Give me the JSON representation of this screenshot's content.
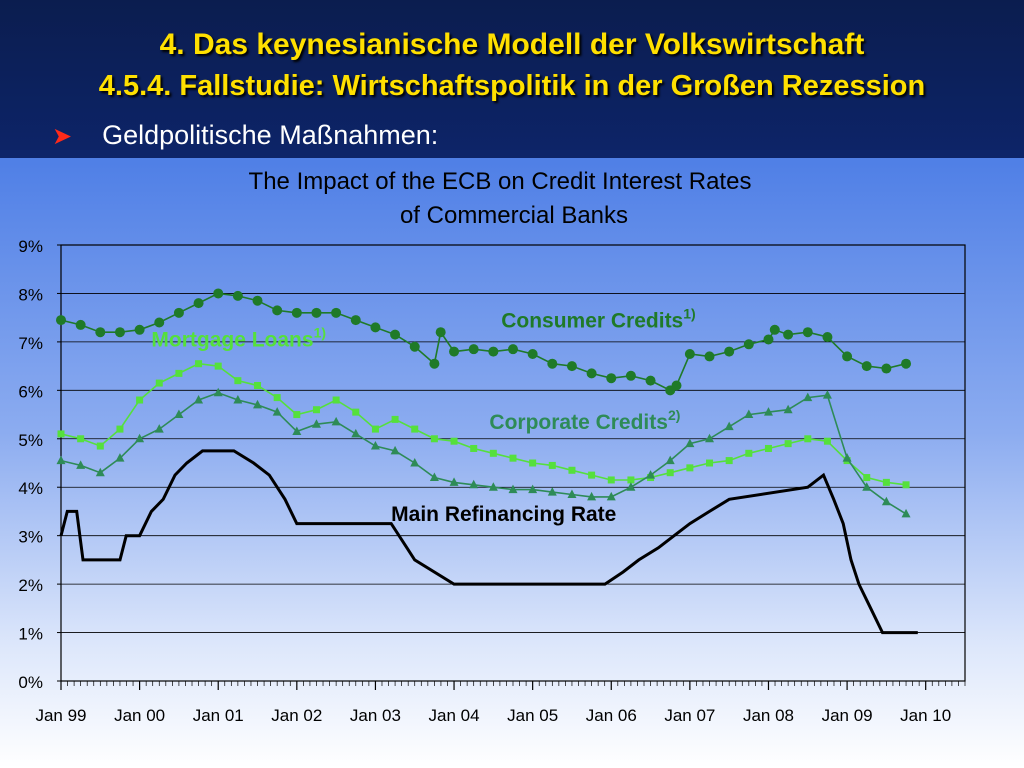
{
  "slide": {
    "title": "4. Das keynesianische Modell der Volkswirtschaft",
    "subtitle": "4.5.4.  Fallstudie: Wirtschaftspolitik in der Großen Rezession",
    "bullet_icon": "arrow-bullet-icon",
    "bullet": "Geldpolitische Maßnahmen:"
  },
  "chart_data": {
    "type": "line",
    "title_line1": "The Impact of the ECB on Credit Interest Rates",
    "title_line2": "of Commercial Banks",
    "xlabel": "",
    "ylabel": "",
    "ylim": [
      0,
      9
    ],
    "yticks": [
      "0%",
      "1%",
      "2%",
      "3%",
      "4%",
      "5%",
      "6%",
      "7%",
      "8%",
      "9%"
    ],
    "xlim": [
      1999.0,
      2010.5
    ],
    "xticks": [
      "Jan 99",
      "Jan 00",
      "Jan 01",
      "Jan 02",
      "Jan 03",
      "Jan 04",
      "Jan 05",
      "Jan 06",
      "Jan 07",
      "Jan 08",
      "Jan 09",
      "Jan 10"
    ],
    "grid": true,
    "legend": "none",
    "series": [
      {
        "name": "Consumer Credits",
        "note": "1)",
        "color": "#1f7a28",
        "marker": "circle",
        "x": [
          1999.0,
          1999.25,
          1999.5,
          1999.75,
          2000.0,
          2000.25,
          2000.5,
          2000.75,
          2001.0,
          2001.25,
          2001.5,
          2001.75,
          2002.0,
          2002.25,
          2002.5,
          2002.75,
          2003.0,
          2003.25,
          2003.5,
          2003.75,
          2003.83,
          2004.0,
          2004.25,
          2004.5,
          2004.75,
          2005.0,
          2005.25,
          2005.5,
          2005.75,
          2006.0,
          2006.25,
          2006.5,
          2006.75,
          2006.83,
          2007.0,
          2007.25,
          2007.5,
          2007.75,
          2008.0,
          2008.08,
          2008.25,
          2008.5,
          2008.75,
          2009.0,
          2009.25,
          2009.5,
          2009.75
        ],
        "values": [
          7.45,
          7.35,
          7.2,
          7.2,
          7.25,
          7.4,
          7.6,
          7.8,
          8.0,
          7.95,
          7.85,
          7.65,
          7.6,
          7.6,
          7.6,
          7.45,
          7.3,
          7.15,
          6.9,
          6.55,
          7.2,
          6.8,
          6.85,
          6.8,
          6.85,
          6.75,
          6.55,
          6.5,
          6.35,
          6.25,
          6.3,
          6.2,
          6.0,
          6.1,
          6.75,
          6.7,
          6.8,
          6.95,
          7.05,
          7.25,
          7.15,
          7.2,
          7.1,
          6.7,
          6.5,
          6.45,
          6.55
        ]
      },
      {
        "name": "Mortgage Loans",
        "note": "1)",
        "color": "#55e03c",
        "marker": "square",
        "x": [
          1999.0,
          1999.25,
          1999.5,
          1999.75,
          2000.0,
          2000.25,
          2000.5,
          2000.75,
          2001.0,
          2001.25,
          2001.5,
          2001.75,
          2002.0,
          2002.25,
          2002.5,
          2002.75,
          2003.0,
          2003.25,
          2003.5,
          2003.75,
          2004.0,
          2004.25,
          2004.5,
          2004.75,
          2005.0,
          2005.25,
          2005.5,
          2005.75,
          2006.0,
          2006.25,
          2006.5,
          2006.75,
          2007.0,
          2007.25,
          2007.5,
          2007.75,
          2008.0,
          2008.25,
          2008.5,
          2008.75,
          2009.0,
          2009.25,
          2009.5,
          2009.75
        ],
        "values": [
          5.1,
          5.0,
          4.85,
          5.2,
          5.8,
          6.15,
          6.35,
          6.55,
          6.5,
          6.2,
          6.1,
          5.85,
          5.5,
          5.6,
          5.8,
          5.55,
          5.2,
          5.4,
          5.2,
          5.0,
          4.95,
          4.8,
          4.7,
          4.6,
          4.5,
          4.45,
          4.35,
          4.25,
          4.15,
          4.15,
          4.2,
          4.3,
          4.4,
          4.5,
          4.55,
          4.7,
          4.8,
          4.9,
          5.0,
          4.95,
          4.55,
          4.2,
          4.1,
          4.05
        ]
      },
      {
        "name": "Corporate Credits",
        "note": "2)",
        "color": "#2e8b57",
        "marker": "triangle",
        "x": [
          1999.0,
          1999.25,
          1999.5,
          1999.75,
          2000.0,
          2000.25,
          2000.5,
          2000.75,
          2001.0,
          2001.25,
          2001.5,
          2001.75,
          2002.0,
          2002.25,
          2002.5,
          2002.75,
          2003.0,
          2003.25,
          2003.5,
          2003.75,
          2004.0,
          2004.25,
          2004.5,
          2004.75,
          2005.0,
          2005.25,
          2005.5,
          2005.75,
          2006.0,
          2006.25,
          2006.5,
          2006.75,
          2007.0,
          2007.25,
          2007.5,
          2007.75,
          2008.0,
          2008.25,
          2008.5,
          2008.75,
          2009.0,
          2009.25,
          2009.5,
          2009.75
        ],
        "values": [
          4.55,
          4.45,
          4.3,
          4.6,
          5.0,
          5.2,
          5.5,
          5.8,
          5.95,
          5.8,
          5.7,
          5.55,
          5.15,
          5.3,
          5.35,
          5.1,
          4.85,
          4.75,
          4.5,
          4.2,
          4.1,
          4.05,
          4.0,
          3.95,
          3.95,
          3.9,
          3.85,
          3.8,
          3.8,
          4.0,
          4.25,
          4.55,
          4.9,
          5.0,
          5.25,
          5.5,
          5.55,
          5.6,
          5.85,
          5.9,
          4.6,
          4.0,
          3.7,
          3.45
        ]
      },
      {
        "name": "Main Refinancing Rate",
        "note": "",
        "color": "#000000",
        "marker": "none",
        "x": [
          1999.0,
          1999.08,
          1999.2,
          1999.28,
          1999.75,
          1999.83,
          2000.0,
          2000.15,
          2000.3,
          2000.45,
          2000.6,
          2000.8,
          2001.2,
          2001.45,
          2001.65,
          2001.85,
          2002.0,
          2002.9,
          2003.2,
          2003.4,
          2003.5,
          2004.0,
          2005.0,
          2005.92,
          2006.15,
          2006.35,
          2006.6,
          2006.8,
          2007.0,
          2007.25,
          2007.5,
          2008.5,
          2008.7,
          2008.83,
          2008.95,
          2009.05,
          2009.15,
          2009.3,
          2009.45,
          2009.8,
          2009.9
        ],
        "values": [
          3.0,
          3.5,
          3.5,
          2.5,
          2.5,
          3.0,
          3.0,
          3.5,
          3.75,
          4.25,
          4.5,
          4.75,
          4.75,
          4.5,
          4.25,
          3.75,
          3.25,
          3.25,
          3.25,
          2.75,
          2.5,
          2.0,
          2.0,
          2.0,
          2.25,
          2.5,
          2.75,
          3.0,
          3.25,
          3.5,
          3.75,
          4.0,
          4.25,
          3.75,
          3.25,
          2.5,
          2.0,
          1.5,
          1.0,
          1.0,
          1.0
        ]
      }
    ]
  }
}
